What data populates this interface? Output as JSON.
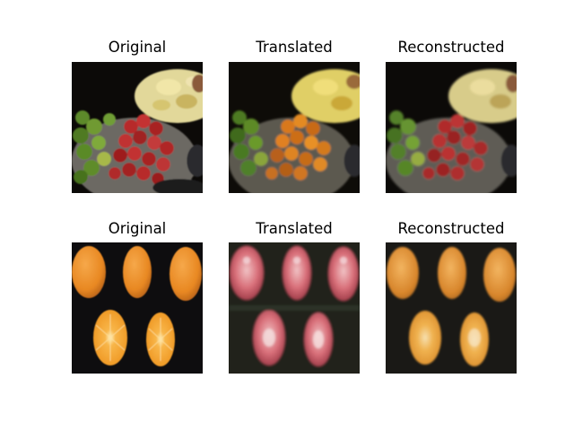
{
  "grid": {
    "rows": [
      {
        "subject": "mixed fruit bowl (apples, bananas)",
        "panels": [
          {
            "title": "Original"
          },
          {
            "title": "Translated"
          },
          {
            "title": "Reconstructed"
          }
        ]
      },
      {
        "subject": "oranges on dark background",
        "panels": [
          {
            "title": "Original"
          },
          {
            "title": "Translated"
          },
          {
            "title": "Reconstructed"
          }
        ]
      }
    ]
  }
}
